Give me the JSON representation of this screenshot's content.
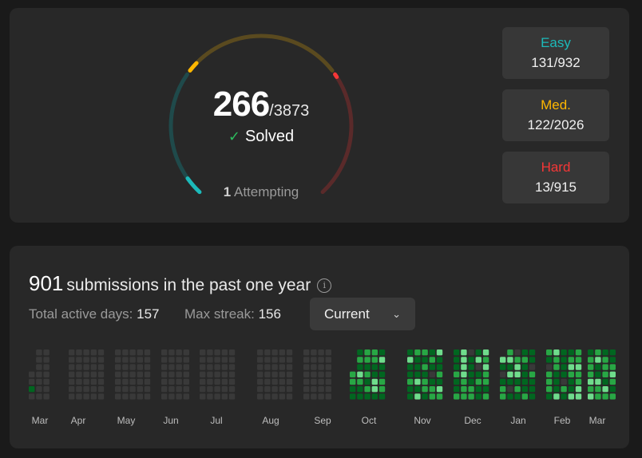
{
  "progress": {
    "solved": "266",
    "total": "/3873",
    "solved_label": "Solved",
    "attempting_count": "1",
    "attempting_label": "Attempting",
    "difficulties": [
      {
        "label": "Easy",
        "value": "131/932",
        "color": "#1cbaba",
        "track": "#1f4a4b",
        "solved": 131,
        "total": 932
      },
      {
        "label": "Med.",
        "value": "122/2026",
        "color": "#ffb700",
        "track": "#5a4a1f",
        "solved": 122,
        "total": 2026
      },
      {
        "label": "Hard",
        "value": "13/915",
        "color": "#f63737",
        "track": "#5a2a2a",
        "solved": 13,
        "total": 915
      }
    ]
  },
  "submissions": {
    "count": "901",
    "text": "submissions in the past one year",
    "active_days_label": "Total active days:",
    "active_days": "157",
    "max_streak_label": "Max streak:",
    "max_streak": "156",
    "dropdown_value": "Current",
    "months": [
      "Mar",
      "Apr",
      "May",
      "Jun",
      "Jul",
      "Aug",
      "Sep",
      "Oct",
      "Nov",
      "Dec",
      "Jan",
      "Feb",
      "Mar"
    ],
    "colors": {
      "empty": "#393939",
      "level1": "#016620",
      "level2": "#28a745",
      "level3": "#6fdc8c"
    }
  }
}
